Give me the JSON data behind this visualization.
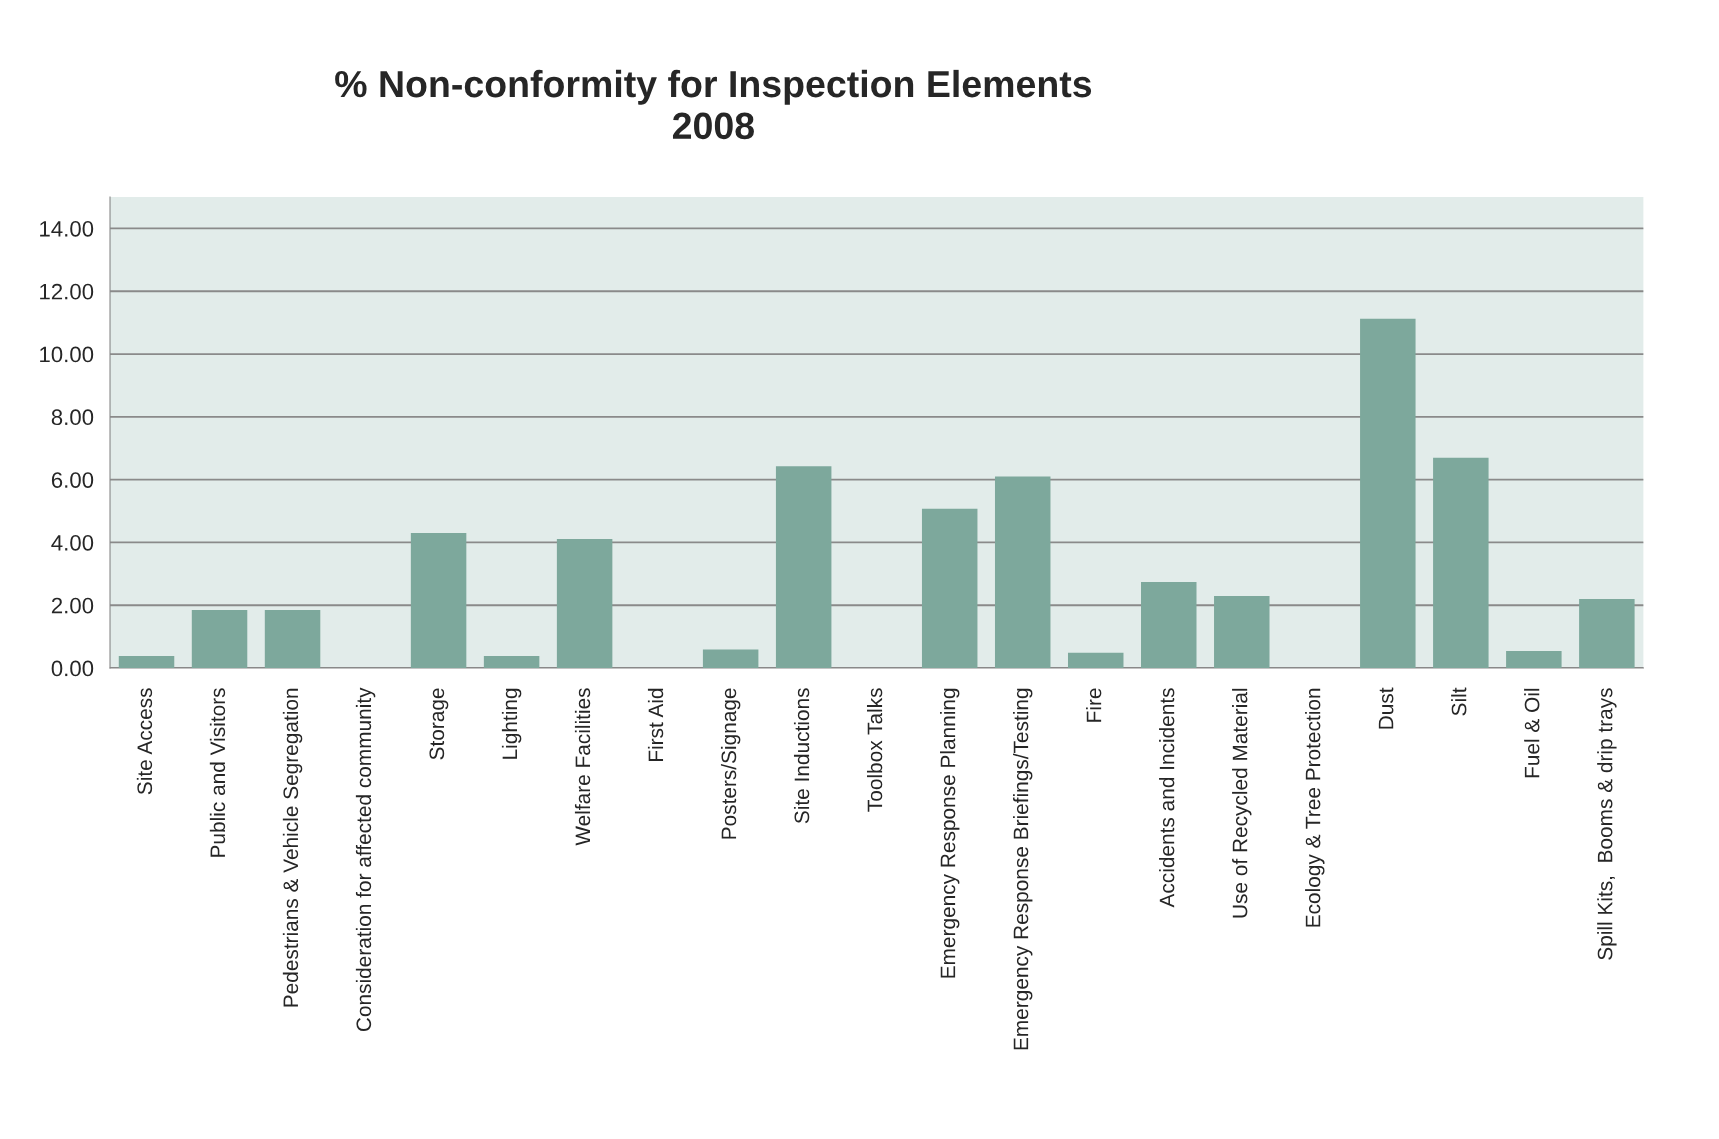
{
  "chart_data": {
    "type": "bar",
    "title": "% Non-conformity for Inspection Elements\n2008",
    "categories": [
      "Site Access",
      "Public and Visitors",
      "Pedestrians & Vehicle Segregation",
      "Consideration for affected community",
      "Storage",
      "Lighting",
      "Welfare Facilities",
      "First Aid",
      "Posters/Signage",
      "Site Inductions",
      "Toolbox Talks",
      "Emergency Response Planning",
      "Emergency Response Briefings/Testing",
      "Fire",
      "Accidents and Incidents",
      "Use of Recycled Material",
      "Ecology & Tree Protection",
      "Dust",
      "Silt",
      "Fuel & Oil",
      "Spill Kits,  Booms & drip trays"
    ],
    "values": [
      0.38,
      1.85,
      1.85,
      0,
      4.3,
      0.38,
      4.11,
      0,
      0.59,
      6.43,
      0,
      5.07,
      6.1,
      0.49,
      2.74,
      2.29,
      0,
      11.12,
      6.7,
      0.54,
      2.2
    ],
    "color": "#7da89c",
    "ylim": [
      0,
      15
    ],
    "yticks": [
      {
        "value": 0,
        "label": "0.00"
      },
      {
        "value": 2,
        "label": "2.00"
      },
      {
        "value": 4,
        "label": "4.00"
      },
      {
        "value": 6,
        "label": "6.00"
      },
      {
        "value": 8,
        "label": "8.00"
      },
      {
        "value": 10,
        "label": "10.00"
      },
      {
        "value": 12,
        "label": "12.00"
      },
      {
        "value": 14,
        "label": "14.00"
      }
    ],
    "grid": "y",
    "legend": false
  }
}
